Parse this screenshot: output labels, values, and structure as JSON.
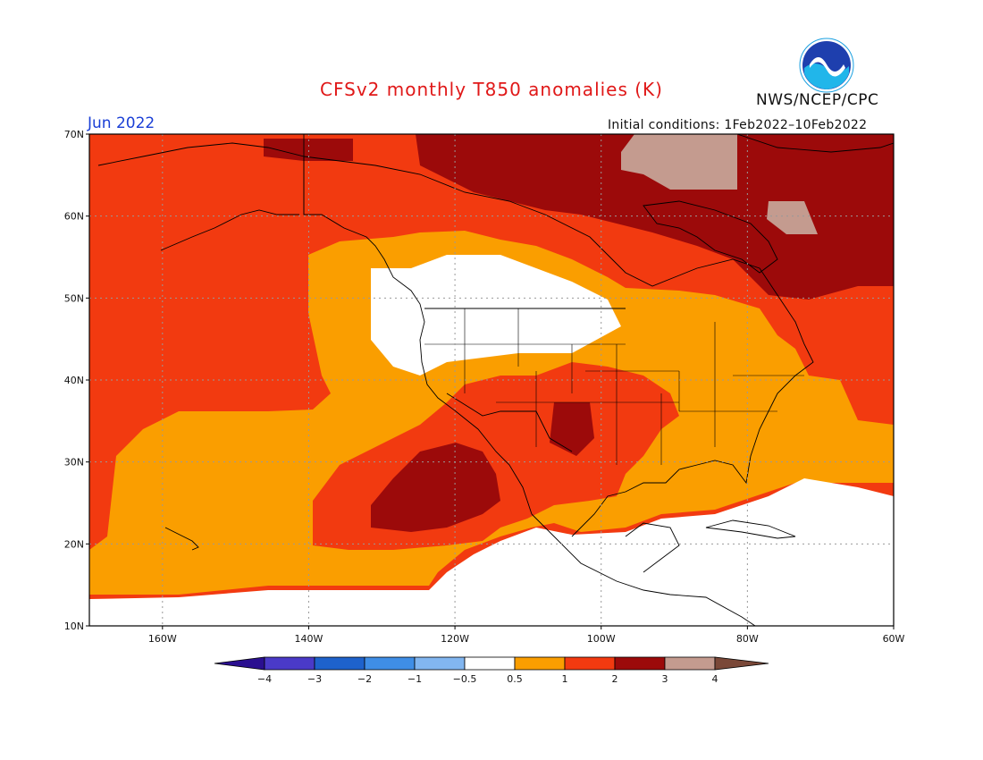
{
  "header": {
    "title": "CFSv2 monthly T850 anomalies (K)",
    "agency": "NWS/NCEP/CPC",
    "logo_text": "NOAA",
    "month": "Jun 2022",
    "initial_conditions": "Initial conditions: 1Feb2022–10Feb2022"
  },
  "map": {
    "lat_labels": [
      "70N",
      "60N",
      "50N",
      "40N",
      "30N",
      "20N",
      "10N"
    ],
    "lon_labels": [
      "160W",
      "140W",
      "120W",
      "100W",
      "80W",
      "60W"
    ],
    "lat_range": [
      10,
      70
    ],
    "lon_range": [
      -170,
      -60
    ],
    "colors": {
      "water": "#f0480a",
      "white": "#ffffff",
      "orange": "#fa9e00",
      "red": "#f23a10",
      "darkred": "#9c0a0a",
      "tan": "#c49b8f",
      "land_line": "#000000"
    }
  },
  "colorbar": {
    "labels": [
      "−4",
      "−3",
      "−2",
      "−1",
      "−0.5",
      "0.5",
      "1",
      "2",
      "3",
      "4"
    ],
    "colors": [
      "#2a0f90",
      "#4a3ac8",
      "#1e62cc",
      "#3f8ee6",
      "#82b6f0",
      "#ffffff",
      "#fa9e00",
      "#f23a10",
      "#9c0a0a",
      "#c49b8f",
      "#7a4838"
    ]
  }
}
